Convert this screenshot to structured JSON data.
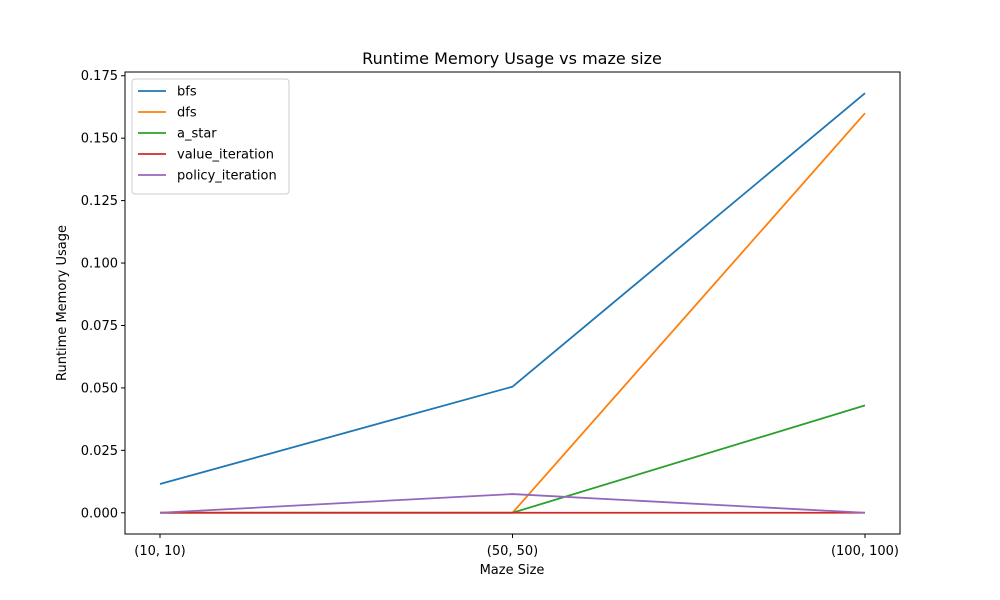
{
  "chart_data": {
    "type": "line",
    "title": "Runtime Memory Usage vs maze size",
    "xlabel": "Maze Size",
    "ylabel": "Runtime Memory Usage",
    "categories": [
      "(10, 10)",
      "(50, 50)",
      "(100, 100)"
    ],
    "ylim": [
      -0.0085,
      0.1765
    ],
    "yticks": [
      0.0,
      0.025,
      0.05,
      0.075,
      0.1,
      0.125,
      0.15,
      0.175
    ],
    "ytick_labels": [
      "0.000",
      "0.025",
      "0.050",
      "0.075",
      "0.100",
      "0.125",
      "0.150",
      "0.175"
    ],
    "grid": false,
    "legend_position": "top-left",
    "series": [
      {
        "name": "bfs",
        "color": "#1f77b4",
        "values": [
          0.0115,
          0.0505,
          0.168
        ]
      },
      {
        "name": "dfs",
        "color": "#ff7f0e",
        "values": [
          0.0,
          0.0,
          0.16
        ]
      },
      {
        "name": "a_star",
        "color": "#2ca02c",
        "values": [
          0.0,
          0.0,
          0.043
        ]
      },
      {
        "name": "value_iteration",
        "color": "#d62728",
        "values": [
          0.0,
          0.0,
          0.0
        ]
      },
      {
        "name": "policy_iteration",
        "color": "#9467bd",
        "values": [
          0.0,
          0.0075,
          0.0
        ]
      }
    ]
  }
}
